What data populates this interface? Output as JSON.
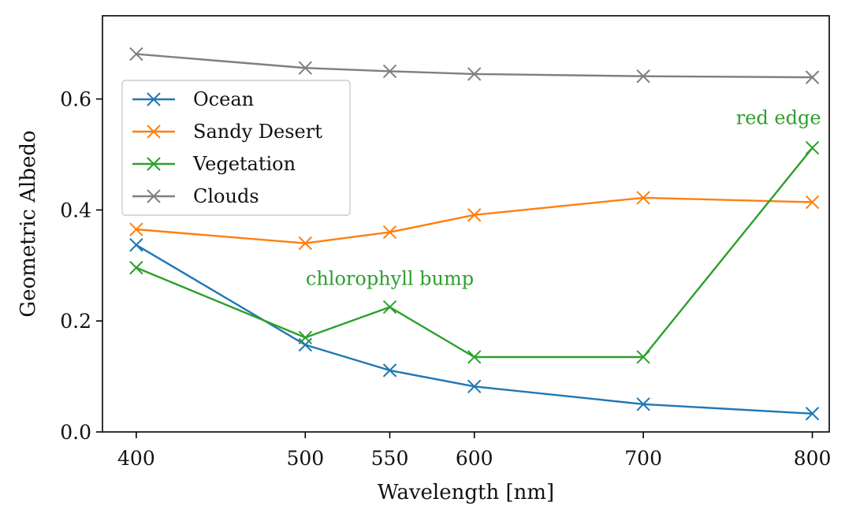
{
  "chart_data": {
    "type": "line",
    "title": "",
    "xlabel": "Wavelength [nm]",
    "ylabel": "Geometric Albedo",
    "xlim": [
      380,
      810
    ],
    "ylim": [
      0.0,
      0.75
    ],
    "x_ticks": [
      400,
      500,
      550,
      600,
      700,
      800
    ],
    "y_ticks": [
      0.0,
      0.2,
      0.4,
      0.6
    ],
    "y_tick_labels": [
      "0.0",
      "0.2",
      "0.4",
      "0.6"
    ],
    "grid": false,
    "legend_position": "upper-left",
    "marker": "x",
    "x": [
      400,
      500,
      550,
      600,
      700,
      800
    ],
    "series": [
      {
        "name": "Ocean",
        "color": "#1f77b4",
        "values": [
          0.337,
          0.157,
          0.111,
          0.082,
          0.05,
          0.033
        ]
      },
      {
        "name": "Sandy Desert",
        "color": "#ff7f0e",
        "values": [
          0.365,
          0.34,
          0.36,
          0.391,
          0.422,
          0.414
        ]
      },
      {
        "name": "Vegetation",
        "color": "#2ca02c",
        "values": [
          0.296,
          0.17,
          0.225,
          0.135,
          0.135,
          0.512
        ]
      },
      {
        "name": "Clouds",
        "color": "#7f7f7f",
        "values": [
          0.681,
          0.656,
          0.65,
          0.645,
          0.641,
          0.639
        ]
      }
    ],
    "annotations": [
      {
        "text": "chlorophyll bump",
        "x": 550,
        "y": 0.265,
        "color": "#2ca02c"
      },
      {
        "text": "red edge",
        "x": 780,
        "y": 0.555,
        "color": "#2ca02c"
      }
    ]
  }
}
